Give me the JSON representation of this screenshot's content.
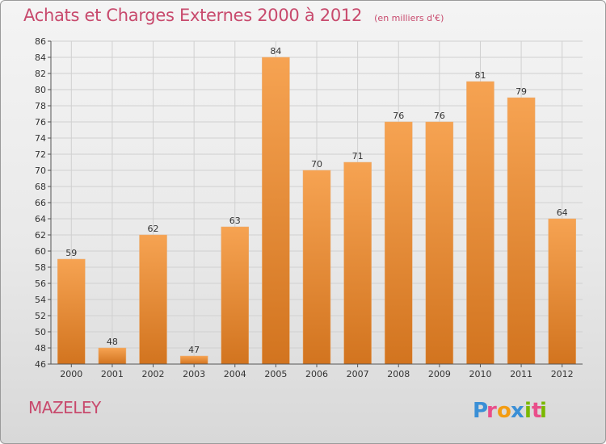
{
  "header": {
    "title": "Achats et Charges Externes 2000 à 2012",
    "subtitle": "(en milliers d'€)"
  },
  "footer": {
    "commune": "MAZELEY",
    "logo_text": "Proxiti"
  },
  "colors": {
    "bar_light": "#f6a352",
    "bar_dark": "#d2741f",
    "title": "#c84a6d",
    "logo_p": "#3a8fd6",
    "logo_r": "#e94e8a",
    "logo_o": "#f39c12",
    "logo_x": "#3a8fd6",
    "logo_i": "#7ab800",
    "logo_t": "#e94e8a",
    "logo_i2": "#7ab800"
  },
  "chart_data": {
    "type": "bar",
    "categories": [
      "2000",
      "2001",
      "2002",
      "2003",
      "2004",
      "2005",
      "2006",
      "2007",
      "2008",
      "2009",
      "2010",
      "2011",
      "2012"
    ],
    "values": [
      59,
      48,
      62,
      47,
      63,
      84,
      70,
      71,
      76,
      76,
      81,
      79,
      64
    ],
    "ylim": [
      46,
      86
    ],
    "ytick_step": 2,
    "grid": true,
    "data_labels": true
  }
}
